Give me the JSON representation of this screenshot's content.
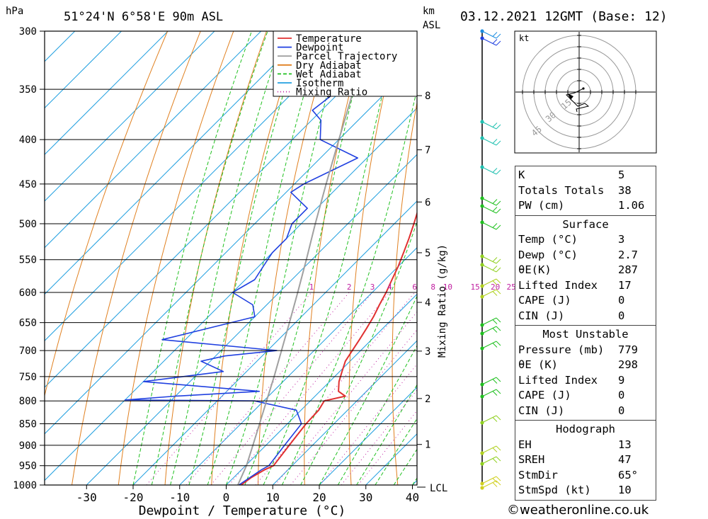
{
  "header": {
    "p_unit": "hPa",
    "location": "51°24'N  6°58'E  90m  ASL",
    "km_label": "km",
    "asl_label": "ASL",
    "datetime": "03.12.2021  12GMT  (Base: 12)"
  },
  "chart_data": {
    "type": "line",
    "subtype": "skew-T log-P",
    "xlabel": "Dewpoint / Temperature (°C)",
    "ylabel": "hPa",
    "xlim": [
      -40,
      40
    ],
    "ylim": [
      1000,
      300
    ],
    "x_ticks": [
      -30,
      -20,
      -10,
      0,
      10,
      20,
      30,
      40
    ],
    "pressure_levels": [
      300,
      350,
      400,
      450,
      500,
      550,
      600,
      650,
      700,
      750,
      800,
      850,
      900,
      950,
      1000
    ],
    "km_ticks": [
      {
        "km": 1,
        "p": 898
      },
      {
        "km": 2,
        "p": 795
      },
      {
        "km": 3,
        "p": 701
      },
      {
        "km": 4,
        "p": 616
      },
      {
        "km": 5,
        "p": 540
      },
      {
        "km": 6,
        "p": 472
      },
      {
        "km": 7,
        "p": 411
      },
      {
        "km": 8,
        "p": 356
      }
    ],
    "lcl_label": "LCL",
    "lcl_pressure": 1000,
    "mixing_ratio_label": "Mixing Ratio (g/kg)",
    "mixing_ratios": [
      1,
      2,
      3,
      4,
      6,
      8,
      10,
      15,
      20,
      25
    ],
    "legend": [
      "Temperature",
      "Dewpoint",
      "Parcel Trajectory",
      "Dry Adiabat",
      "Wet Adiabat",
      "Isotherm",
      "Mixing Ratio"
    ],
    "series": [
      {
        "name": "Temperature",
        "color": "#e03030",
        "points": [
          [
            1000,
            3.2
          ],
          [
            980,
            3.8
          ],
          [
            960,
            5.0
          ],
          [
            950,
            6.0
          ],
          [
            900,
            5.0
          ],
          [
            850,
            4.0
          ],
          [
            820,
            3.8
          ],
          [
            800,
            3.0
          ],
          [
            790,
            6.5
          ],
          [
            780,
            4.0
          ],
          [
            760,
            2.0
          ],
          [
            740,
            0.5
          ],
          [
            720,
            -1.0
          ],
          [
            700,
            -1.8
          ],
          [
            680,
            -2.6
          ],
          [
            660,
            -3.5
          ],
          [
            640,
            -4.5
          ],
          [
            620,
            -5.8
          ],
          [
            600,
            -7.0
          ],
          [
            580,
            -8.5
          ],
          [
            560,
            -10.0
          ],
          [
            540,
            -11.8
          ],
          [
            520,
            -13.7
          ],
          [
            500,
            -15.8
          ],
          [
            475,
            -18.7
          ],
          [
            460,
            -18.4
          ],
          [
            450,
            -19.5
          ],
          [
            420,
            -23.3
          ],
          [
            400,
            -26.0
          ],
          [
            350,
            -33.5
          ],
          [
            320,
            -38.3
          ],
          [
            300,
            -40.5
          ]
        ]
      },
      {
        "name": "Dewpoint",
        "color": "#2040e0",
        "points": [
          [
            1000,
            2.7
          ],
          [
            960,
            4.3
          ],
          [
            950,
            5.0
          ],
          [
            900,
            4.0
          ],
          [
            850,
            3.0
          ],
          [
            820,
            -1.0
          ],
          [
            800,
            -12.0
          ],
          [
            798,
            -40.0
          ],
          [
            790,
            -30.0
          ],
          [
            780,
            -13.0
          ],
          [
            760,
            -40.0
          ],
          [
            740,
            -25.0
          ],
          [
            720,
            -32.0
          ],
          [
            710,
            -28.0
          ],
          [
            700,
            -18.0
          ],
          [
            680,
            -45.0
          ],
          [
            640,
            -30.0
          ],
          [
            620,
            -33.0
          ],
          [
            600,
            -40.0
          ],
          [
            580,
            -38.0
          ],
          [
            560,
            -39.0
          ],
          [
            540,
            -40.0
          ],
          [
            520,
            -40.0
          ],
          [
            500,
            -42.0
          ],
          [
            480,
            -42.0
          ],
          [
            460,
            -49.0
          ],
          [
            450,
            -48.0
          ],
          [
            420,
            -42.0
          ],
          [
            400,
            -54.0
          ],
          [
            380,
            -58.0
          ],
          [
            370,
            -62.0
          ],
          [
            340,
            -60.0
          ],
          [
            320,
            -57.0
          ],
          [
            300,
            -65.0
          ]
        ]
      },
      {
        "name": "Parcel Trajectory",
        "color": "#a0a0a0",
        "points": [
          [
            1000,
            2.5
          ],
          [
            950,
            0.2
          ],
          [
            900,
            -2.8
          ],
          [
            850,
            -6.0
          ],
          [
            800,
            -9.4
          ],
          [
            750,
            -13.0
          ],
          [
            700,
            -17.0
          ],
          [
            650,
            -21.3
          ],
          [
            600,
            -26.0
          ],
          [
            550,
            -31.2
          ],
          [
            500,
            -37.0
          ],
          [
            450,
            -43.2
          ],
          [
            400,
            -50.0
          ],
          [
            350,
            -57.6
          ],
          [
            320,
            -62.5
          ]
        ]
      }
    ]
  },
  "hodograph": {
    "unit": "kt",
    "ring_labels": [
      "15",
      "30",
      "45"
    ]
  },
  "indices": {
    "top": [
      {
        "label": "K",
        "value": "5"
      },
      {
        "label": "Totals Totals",
        "value": "38"
      },
      {
        "label": "PW (cm)",
        "value": "1.06"
      }
    ],
    "surface_title": "Surface",
    "surface": [
      {
        "label": "Temp (°C)",
        "value": "3"
      },
      {
        "label": "Dewp (°C)",
        "value": "2.7"
      },
      {
        "label": "θE(K)",
        "value": "287"
      },
      {
        "label": "Lifted Index",
        "value": "17"
      },
      {
        "label": "CAPE (J)",
        "value": "0"
      },
      {
        "label": "CIN (J)",
        "value": "0"
      }
    ],
    "mu_title": "Most Unstable",
    "mu": [
      {
        "label": "Pressure (mb)",
        "value": "779"
      },
      {
        "label": "θE (K)",
        "value": "298"
      },
      {
        "label": "Lifted Index",
        "value": "9"
      },
      {
        "label": "CAPE (J)",
        "value": "0"
      },
      {
        "label": "CIN (J)",
        "value": "0"
      }
    ],
    "hodo_title": "Hodograph",
    "hodo": [
      {
        "label": "EH",
        "value": "13"
      },
      {
        "label": "SREH",
        "value": "47"
      },
      {
        "label": "StmDir",
        "value": "65°"
      },
      {
        "label": "StmSpd (kt)",
        "value": "10"
      }
    ]
  },
  "footer": {
    "copyright": "©weatheronline.co.uk"
  }
}
